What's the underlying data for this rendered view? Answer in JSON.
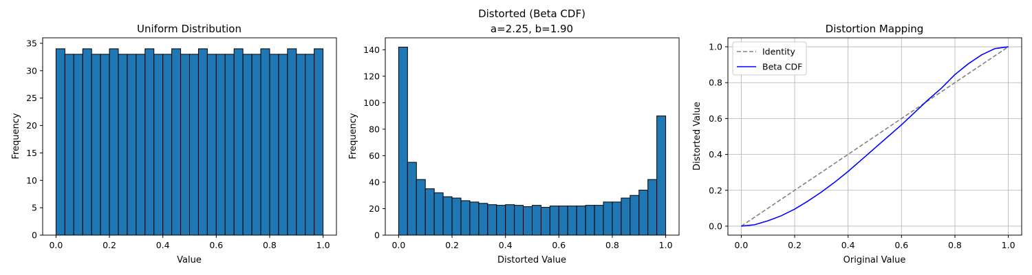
{
  "chart_data": [
    {
      "type": "bar",
      "title": "Uniform Distribution",
      "xlabel": "Value",
      "ylabel": "Frequency",
      "xlim": [
        -0.05,
        1.05
      ],
      "ylim": [
        0,
        36
      ],
      "xticks": [
        "0.0",
        "0.2",
        "0.4",
        "0.6",
        "0.8",
        "1.0"
      ],
      "yticks": [
        "0",
        "5",
        "10",
        "15",
        "20",
        "25",
        "30",
        "35"
      ],
      "bin_edges": [
        0,
        1
      ],
      "values": [
        34,
        33,
        33,
        34,
        33,
        33,
        34,
        33,
        33,
        33,
        34,
        33,
        33,
        34,
        33,
        33,
        34,
        33,
        33,
        33,
        34,
        33,
        33,
        34,
        33,
        33,
        34,
        33,
        33,
        34
      ],
      "bar_color": "#1f77b4",
      "edge_color": "#000000",
      "grid": false
    },
    {
      "type": "bar",
      "title": "Distorted (Beta CDF)",
      "subtitle": "a=2.25, b=1.90",
      "xlabel": "Distorted Value",
      "ylabel": "Frequency",
      "xlim": [
        -0.05,
        1.05
      ],
      "ylim": [
        0,
        149
      ],
      "xticks": [
        "0.0",
        "0.2",
        "0.4",
        "0.6",
        "0.8",
        "1.0"
      ],
      "yticks": [
        "0",
        "20",
        "40",
        "60",
        "80",
        "100",
        "120",
        "140"
      ],
      "bin_edges": [
        0,
        1
      ],
      "values": [
        142,
        55,
        42,
        35,
        32,
        29,
        28,
        26,
        25,
        24,
        23,
        22.5,
        23,
        22.5,
        21.5,
        22.5,
        21,
        22,
        22,
        22,
        22,
        22.5,
        22.5,
        25,
        25,
        28,
        30,
        34,
        42,
        90
      ],
      "bar_color": "#1f77b4",
      "edge_color": "#000000",
      "grid": false
    },
    {
      "type": "line",
      "title": "Distortion Mapping",
      "xlabel": "Original Value",
      "ylabel": "Distorted Value",
      "xlim": [
        -0.05,
        1.05
      ],
      "ylim": [
        -0.05,
        1.05
      ],
      "xticks": [
        "0.0",
        "0.2",
        "0.4",
        "0.6",
        "0.8",
        "1.0"
      ],
      "yticks": [
        "0.0",
        "0.2",
        "0.4",
        "0.6",
        "0.8",
        "1.0"
      ],
      "grid": true,
      "legend_position": "top-left",
      "x": [
        0,
        0.05,
        0.1,
        0.15,
        0.2,
        0.25,
        0.3,
        0.35,
        0.4,
        0.45,
        0.5,
        0.55,
        0.6,
        0.65,
        0.7,
        0.75,
        0.8,
        0.85,
        0.9,
        0.95,
        1.0
      ],
      "series": [
        {
          "name": "Identity",
          "color": "#808080",
          "dash": "dashed",
          "values": [
            0,
            0.05,
            0.1,
            0.15,
            0.2,
            0.25,
            0.3,
            0.35,
            0.4,
            0.45,
            0.5,
            0.55,
            0.6,
            0.65,
            0.7,
            0.75,
            0.8,
            0.85,
            0.9,
            0.95,
            1.0
          ]
        },
        {
          "name": "Beta CDF",
          "color": "#0000ff",
          "dash": "solid",
          "values": [
            0,
            0.008,
            0.03,
            0.058,
            0.095,
            0.14,
            0.19,
            0.245,
            0.305,
            0.37,
            0.435,
            0.5,
            0.565,
            0.635,
            0.705,
            0.77,
            0.845,
            0.905,
            0.955,
            0.99,
            1.0
          ]
        }
      ]
    }
  ]
}
